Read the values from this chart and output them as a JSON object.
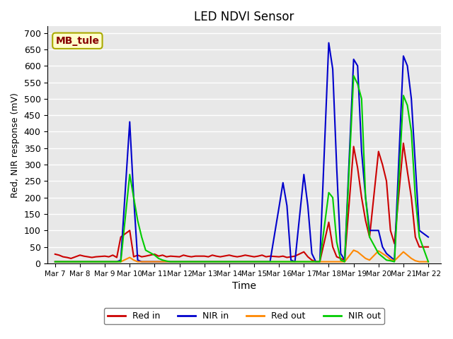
{
  "title": "LED NDVI Sensor",
  "xlabel": "Time",
  "ylabel": "Red, NIR response (mV)",
  "ylim": [
    0,
    720
  ],
  "yticks": [
    0,
    50,
    100,
    150,
    200,
    250,
    300,
    350,
    400,
    450,
    500,
    550,
    600,
    650,
    700
  ],
  "annotation_text": "MB_tule",
  "bg_color": "#e8e8e8",
  "grid_color": "white",
  "series": {
    "Red in": {
      "color": "#cc0000",
      "lw": 1.5
    },
    "NIR in": {
      "color": "#0000cc",
      "lw": 1.5
    },
    "Red out": {
      "color": "#ff8800",
      "lw": 1.5
    },
    "NIR out": {
      "color": "#00cc00",
      "lw": 1.5
    }
  },
  "x_numeric": [
    0.0,
    0.16,
    0.32,
    0.48,
    0.64,
    1.0,
    1.16,
    1.32,
    1.48,
    1.64,
    2.0,
    2.16,
    2.32,
    2.48,
    2.64,
    3.0,
    3.16,
    3.32,
    3.48,
    3.64,
    4.0,
    4.16,
    4.32,
    4.48,
    4.64,
    5.0,
    5.16,
    5.32,
    5.48,
    5.64,
    6.0,
    6.16,
    6.32,
    6.48,
    6.64,
    7.0,
    7.16,
    7.32,
    7.48,
    7.64,
    8.0,
    8.16,
    8.32,
    8.48,
    8.64,
    9.0,
    9.16,
    9.32,
    9.48,
    9.64,
    10.0,
    10.16,
    10.32,
    10.48,
    10.64,
    11.0,
    11.16,
    11.32,
    11.48,
    11.64,
    12.0,
    12.16,
    12.32,
    12.48,
    12.64,
    13.0,
    13.16,
    13.32,
    13.48,
    13.64,
    14.0,
    14.16,
    14.32,
    14.48,
    14.64,
    15.0
  ],
  "red_in": [
    28,
    25,
    20,
    18,
    15,
    25,
    22,
    20,
    18,
    20,
    22,
    20,
    25,
    18,
    80,
    100,
    20,
    25,
    20,
    22,
    28,
    22,
    25,
    20,
    22,
    20,
    25,
    22,
    20,
    22,
    22,
    20,
    25,
    22,
    20,
    25,
    22,
    20,
    22,
    25,
    20,
    22,
    25,
    20,
    22,
    20,
    22,
    18,
    20,
    22,
    35,
    20,
    10,
    5,
    5,
    125,
    50,
    20,
    15,
    10,
    355,
    290,
    200,
    130,
    80,
    340,
    300,
    250,
    100,
    60,
    365,
    280,
    200,
    80,
    50,
    50
  ],
  "nir_in": [
    5,
    5,
    5,
    5,
    5,
    5,
    5,
    5,
    5,
    5,
    5,
    5,
    5,
    5,
    10,
    430,
    200,
    10,
    5,
    5,
    5,
    5,
    5,
    5,
    5,
    5,
    5,
    5,
    5,
    5,
    5,
    5,
    5,
    5,
    5,
    5,
    5,
    5,
    5,
    5,
    5,
    5,
    5,
    5,
    5,
    170,
    245,
    175,
    10,
    5,
    270,
    175,
    30,
    5,
    5,
    670,
    590,
    290,
    30,
    10,
    620,
    600,
    340,
    200,
    100,
    100,
    50,
    30,
    20,
    10,
    630,
    600,
    500,
    300,
    100,
    80
  ],
  "red_out": [
    5,
    5,
    5,
    5,
    5,
    5,
    5,
    5,
    5,
    5,
    5,
    5,
    5,
    5,
    5,
    18,
    10,
    5,
    5,
    5,
    5,
    5,
    5,
    5,
    5,
    5,
    5,
    5,
    5,
    5,
    5,
    5,
    5,
    5,
    5,
    5,
    5,
    5,
    5,
    5,
    5,
    5,
    5,
    5,
    5,
    5,
    5,
    5,
    5,
    5,
    5,
    5,
    5,
    5,
    5,
    5,
    5,
    5,
    5,
    5,
    40,
    35,
    25,
    15,
    10,
    38,
    30,
    22,
    12,
    8,
    35,
    25,
    15,
    8,
    5,
    5
  ],
  "nir_out": [
    5,
    5,
    5,
    5,
    5,
    5,
    5,
    5,
    5,
    5,
    5,
    5,
    5,
    5,
    5,
    270,
    200,
    130,
    80,
    40,
    25,
    15,
    10,
    7,
    5,
    5,
    5,
    5,
    5,
    5,
    5,
    5,
    5,
    5,
    5,
    5,
    5,
    5,
    5,
    5,
    5,
    5,
    5,
    5,
    5,
    5,
    5,
    5,
    5,
    5,
    5,
    5,
    5,
    5,
    5,
    215,
    200,
    65,
    10,
    5,
    570,
    545,
    500,
    200,
    80,
    30,
    20,
    10,
    8,
    5,
    510,
    480,
    400,
    200,
    80,
    5
  ]
}
